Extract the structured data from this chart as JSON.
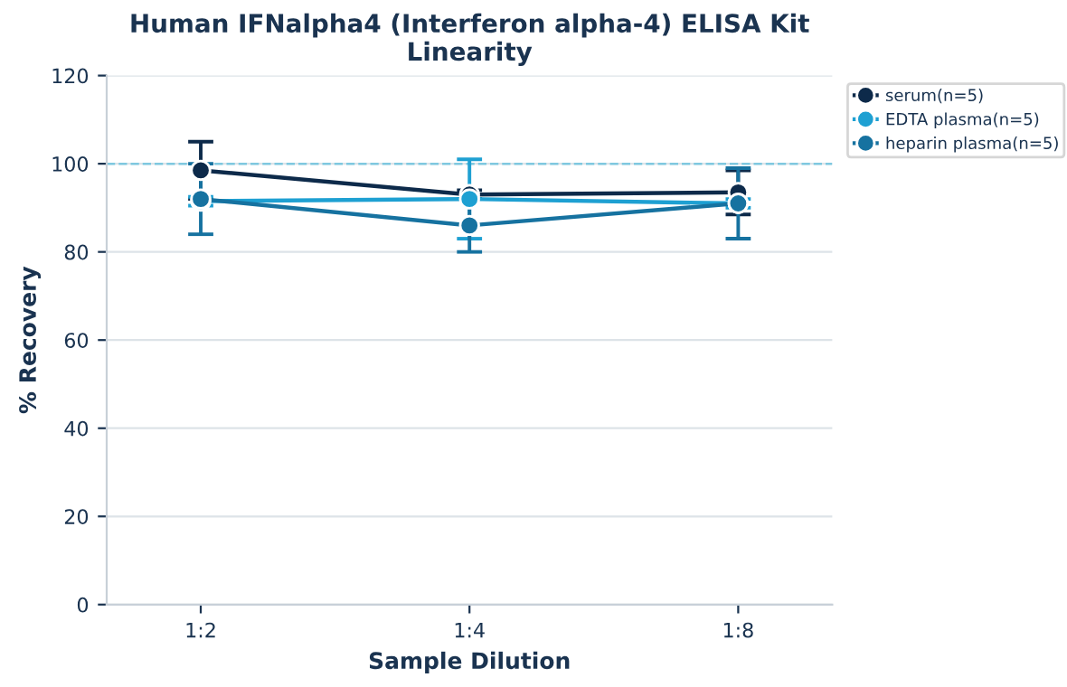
{
  "chart_data": {
    "type": "line",
    "title": "Human IFNalpha4 (Interferon alpha-4) ELISA Kit\nLinearity",
    "xlabel": "Sample Dilution",
    "ylabel": "% Recovery",
    "categories": [
      "1:2",
      "1:4",
      "1:8"
    ],
    "series": [
      {
        "name": "serum(n=5)",
        "color": "#0d2a4a",
        "values": [
          98.5,
          93,
          93.5
        ],
        "errors": [
          6.5,
          1,
          5
        ]
      },
      {
        "name": "EDTA plasma(n=5)",
        "color": "#1ea0d2",
        "values": [
          91.5,
          92,
          91
        ],
        "errors": [
          1,
          9,
          1
        ]
      },
      {
        "name": "heparin plasma(n=5)",
        "color": "#1672a0",
        "values": [
          92,
          86,
          91
        ],
        "errors": [
          8,
          6,
          8
        ]
      }
    ],
    "ylim": [
      0,
      120
    ],
    "yticks": [
      0,
      20,
      40,
      60,
      80,
      100,
      120
    ],
    "grid": "y",
    "legend": "top right",
    "marker": "circle",
    "ref_lines": [
      {
        "axis": "y",
        "value": 100,
        "color": "#7fc8e0",
        "line_style": "dashed"
      }
    ]
  }
}
